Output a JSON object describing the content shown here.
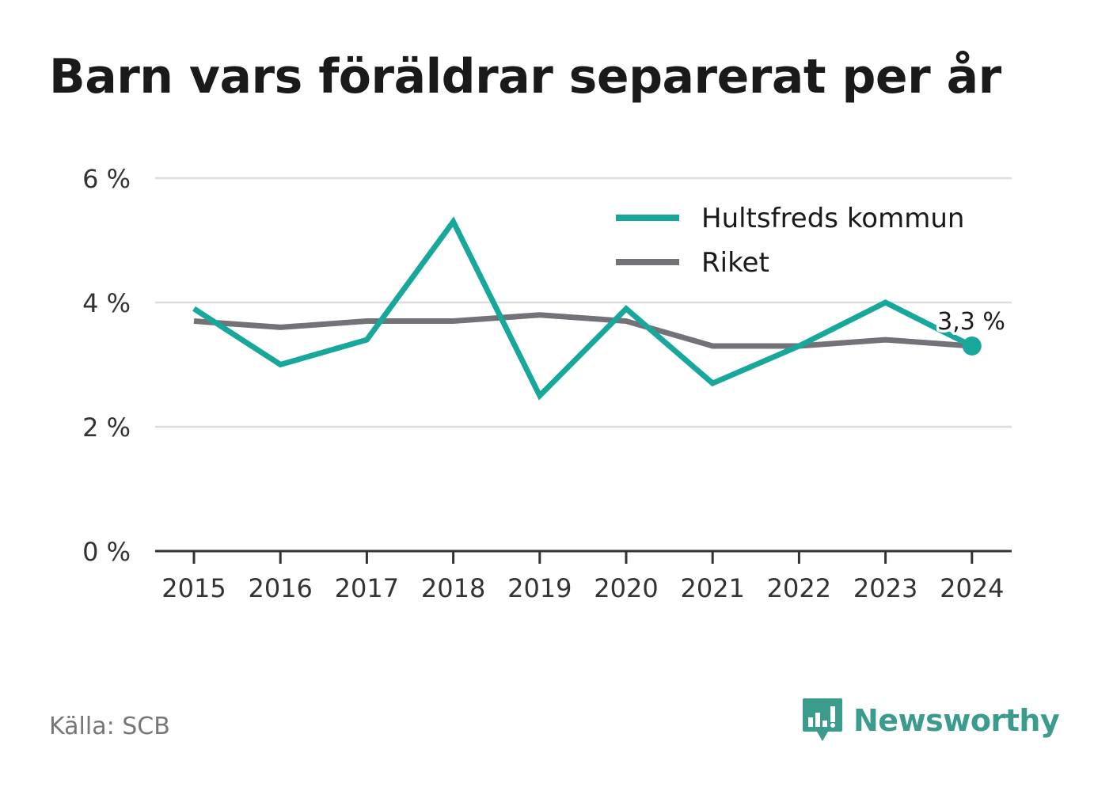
{
  "title": "Barn vars föräldrar separerat per år",
  "source": "Källa: SCB",
  "brand": "Newsworthy",
  "logo_icon": "chart-speech-bubble-icon",
  "colors": {
    "hultsfred": "#18a89b",
    "riket": "#737278",
    "grid": "#dddddd",
    "axis": "#333333",
    "brand": "#3b9c8e"
  },
  "chart_data": {
    "type": "line",
    "x": [
      "2015",
      "2016",
      "2017",
      "2018",
      "2019",
      "2020",
      "2021",
      "2022",
      "2023",
      "2024"
    ],
    "series": [
      {
        "name": "Hultsfreds kommun",
        "values": [
          3.9,
          3.0,
          3.4,
          5.3,
          2.5,
          3.9,
          2.7,
          3.3,
          4.0,
          3.3
        ]
      },
      {
        "name": "Riket",
        "values": [
          3.7,
          3.6,
          3.7,
          3.7,
          3.8,
          3.7,
          3.3,
          3.3,
          3.4,
          3.3
        ]
      }
    ],
    "ylim": [
      0,
      6
    ],
    "yticks": [
      0,
      2,
      4,
      6
    ],
    "ytick_labels": [
      "0 %",
      "2 %",
      "4 %",
      "6 %"
    ],
    "end_label": "3,3 %",
    "grid": true,
    "legend": "top-right"
  }
}
